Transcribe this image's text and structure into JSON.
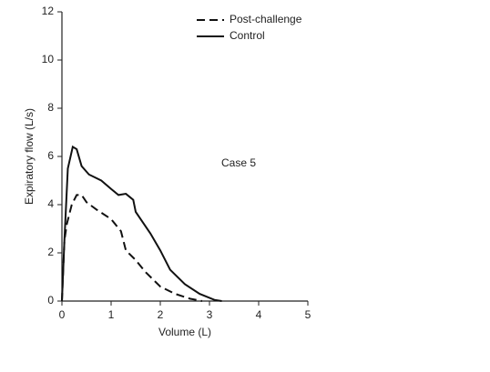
{
  "chart_data": {
    "type": "line",
    "xlabel": "Volume (L)",
    "ylabel": "Expiratory flow (L/s)",
    "annotation": "Case 5",
    "xlim": [
      0,
      5
    ],
    "xticks": [
      0,
      1,
      2,
      3,
      4,
      5
    ],
    "ylim": [
      0,
      12
    ],
    "yticks": [
      0,
      2,
      4,
      6,
      8,
      10,
      12
    ],
    "series": [
      {
        "name": "Post-challenge",
        "color": "#111111",
        "dashed": true,
        "x": [
          0,
          0.05,
          0.1,
          0.2,
          0.3,
          0.4,
          0.5,
          0.7,
          1.0,
          1.2,
          1.3,
          1.5,
          1.7,
          2.0,
          2.3,
          2.6,
          2.85
        ],
        "values": [
          0,
          2.5,
          3.2,
          4.0,
          4.4,
          4.4,
          4.1,
          3.8,
          3.4,
          2.9,
          2.1,
          1.7,
          1.2,
          0.6,
          0.3,
          0.1,
          0
        ]
      },
      {
        "name": "Control",
        "color": "#111111",
        "dashed": false,
        "x": [
          0,
          0.05,
          0.12,
          0.22,
          0.3,
          0.4,
          0.55,
          0.8,
          1.0,
          1.15,
          1.3,
          1.45,
          1.5,
          1.8,
          2.0,
          2.2,
          2.5,
          2.8,
          3.1,
          3.25
        ],
        "values": [
          0,
          2.5,
          5.5,
          6.4,
          6.3,
          5.6,
          5.25,
          5.0,
          4.65,
          4.4,
          4.45,
          4.2,
          3.7,
          2.8,
          2.1,
          1.3,
          0.7,
          0.3,
          0.05,
          0
        ]
      }
    ]
  }
}
